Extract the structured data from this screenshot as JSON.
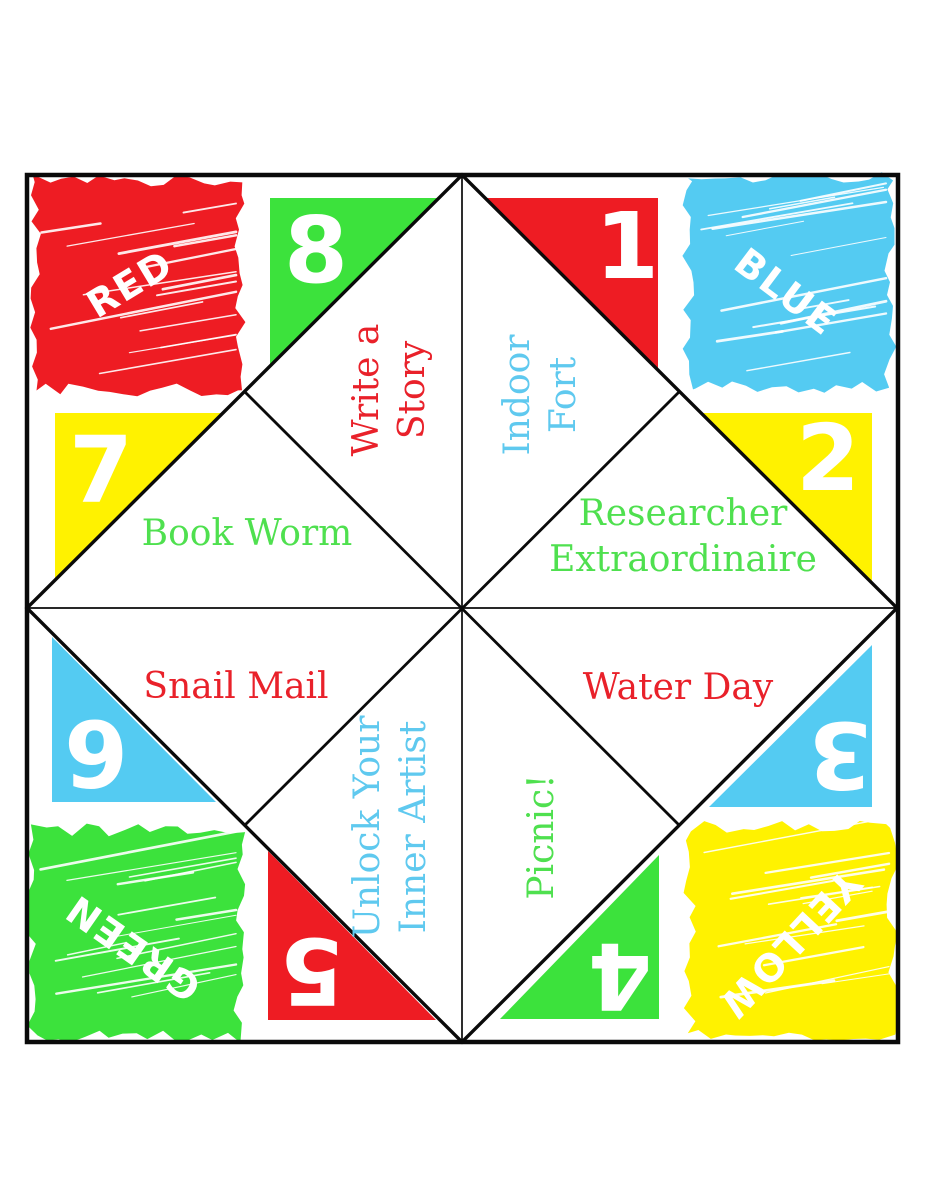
{
  "colors": {
    "red": "#EE1C23",
    "green": "#3CE23C",
    "blue": "#54CBF2",
    "yellow": "#FFF200",
    "text_red": "#E9212A",
    "text_green": "#4FE04F",
    "text_blue": "#5FC9EF",
    "line": "#0A0A0A"
  },
  "corners": [
    {
      "label": "RED"
    },
    {
      "label": "BLUE"
    },
    {
      "label": "GREEN"
    },
    {
      "label": "YELLOW"
    }
  ],
  "numbers": [
    {
      "value": "1"
    },
    {
      "value": "2"
    },
    {
      "value": "3"
    },
    {
      "value": "4"
    },
    {
      "value": "5"
    },
    {
      "value": "6"
    },
    {
      "value": "7"
    },
    {
      "value": "8"
    }
  ],
  "activities": [
    {
      "label": "Write a\nStory"
    },
    {
      "label": "Indoor\nFort"
    },
    {
      "label": "Book Worm"
    },
    {
      "label": "Researcher\nExtraordinaire"
    },
    {
      "label": "Snail Mail"
    },
    {
      "label": "Water Day"
    },
    {
      "label": "Unlock Your\nInner Artist"
    },
    {
      "label": "Picnic!"
    }
  ]
}
